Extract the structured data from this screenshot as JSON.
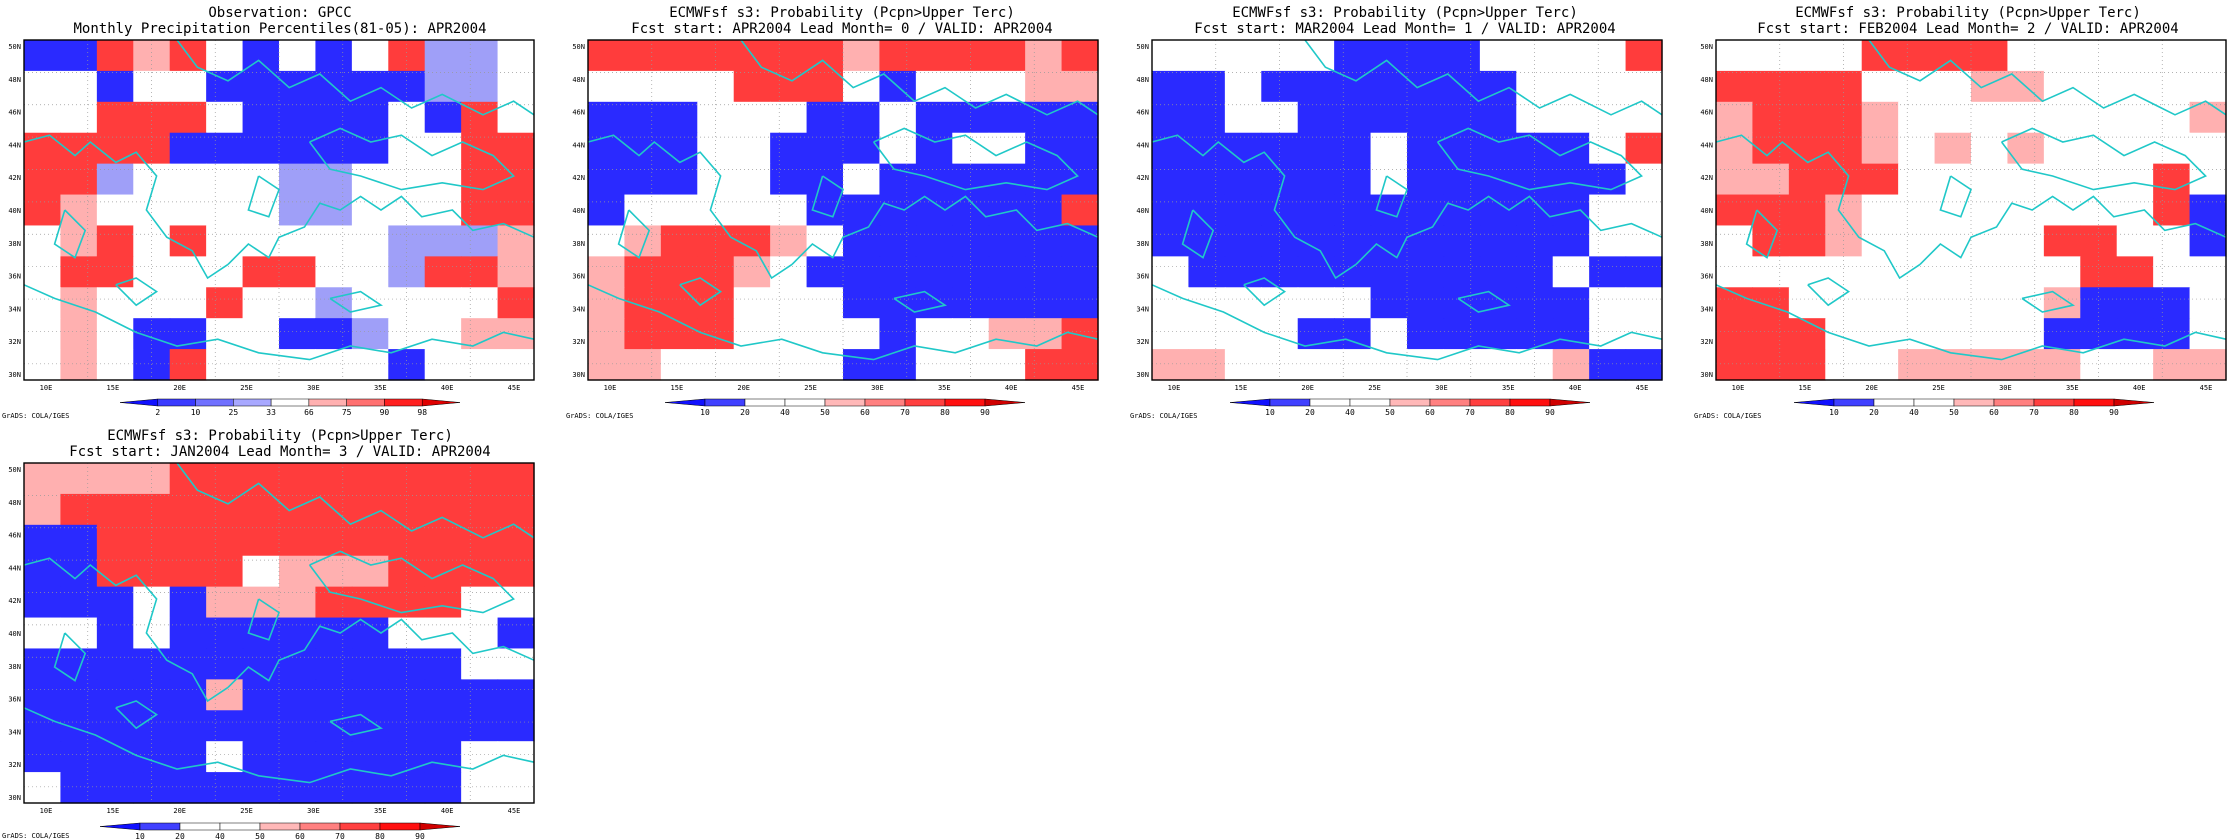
{
  "panels": [
    {
      "title1": "Observation: GPCC",
      "title2": "Monthly Precipitation Percentiles(81-05): APR2004",
      "colorbar": {
        "labels": [
          "2",
          "10",
          "25",
          "33",
          "66",
          "75",
          "90",
          "98"
        ],
        "colors": [
          "#1010ff",
          "#3a3aff",
          "#7070ff",
          "#a8a8ff",
          "#ffffff",
          "#ffb0b0",
          "#ff7070",
          "#ff2020",
          "#e00000"
        ]
      },
      "grid": [
        "BBRrR.B.B.Rbb.",
        "..B..BBBBBBbb.",
        "..RRR.BBBB.BR.",
        "RRRRBBBBBB..RR",
        "RRb....bb...RR",
        "Rr.....bb...RR",
        ".rR.R.....bbbr",
        ".RR...RR..bRRr",
        ".r...R..b....R",
        ".r.BB..BBb..rr",
        ".r.BR.....B..."
      ]
    },
    {
      "title1": "ECMWFsf s3: Probability (Pcpn>Upper Terc)",
      "title2": "Fcst start: APR2004   Lead Month= 0 / VALID: APR2004",
      "colorbar": {
        "labels": [
          "10",
          "20",
          "40",
          "50",
          "60",
          "70",
          "80",
          "90"
        ],
        "colors": [
          "#1010ff",
          "#4040ff",
          "#ffffff",
          "#ffffff",
          "#ffb8b8",
          "#ff8080",
          "#ff4040",
          "#ff1010",
          "#d00000"
        ]
      },
      "grid": [
        "RRRRRRRrRRRRrR",
        "....RRR.B...rr",
        "BBB...BB.BBBBB",
        "BBB..BBB.B..BB",
        "BBB..BB.BBBBBB",
        "B.....BBBBBBBR",
        ".rRRRr.BBBBBBB",
        "rRRRr.BBBBBBBB",
        "rRRR...BBBBBBB",
        "rRRR....B..rrR",
        "rr.....BB...RR"
      ]
    },
    {
      "title1": "ECMWFsf s3: Probability (Pcpn>Upper Terc)",
      "title2": "Fcst start: MAR2004   Lead Month= 1 / VALID: APR2004",
      "colorbar": {
        "labels": [
          "10",
          "20",
          "40",
          "50",
          "60",
          "70",
          "80",
          "90"
        ],
        "colors": [
          "#1010ff",
          "#4040ff",
          "#ffffff",
          "#ffffff",
          "#ffb8b8",
          "#ff8080",
          "#ff4040",
          "#ff1010",
          "#d00000"
        ]
      },
      "grid": [
        ".....BBBB....R",
        "BB.BBBBBBB....",
        "BB..BBBBBB....",
        "BBBBBB.BBBBB.R",
        "BBBBBB.BBBBBB.",
        "BBBBBBBBBBBB..",
        "BBBBBBBBBBBB..",
        ".BBBBBBBBBB.BB",
        "......BBBBBB..",
        "....BB.BBBBB..",
        "rr.........rBB"
      ]
    },
    {
      "title1": "ECMWFsf s3: Probability (Pcpn>Upper Terc)",
      "title2": "Fcst start: FEB2004   Lead Month= 2 / VALID: APR2004",
      "colorbar": {
        "labels": [
          "10",
          "20",
          "40",
          "50",
          "60",
          "70",
          "80",
          "90"
        ],
        "colors": [
          "#1010ff",
          "#4040ff",
          "#ffffff",
          "#ffffff",
          "#ffb8b8",
          "#ff8080",
          "#ff4040",
          "#ff1010",
          "#d00000"
        ]
      },
      "grid": [
        "....RRRR......",
        "RRRR...rr.....",
        "rRRRr........r",
        "rRRRr.r.r.....",
        "rrRRR.......R.",
        "RRRr........RB",
        ".RRr.....RR..B",
        "..........RR..",
        "RR.......rBBB.",
        "RRR......BBBB.",
        "RRR..rrrrr..rr"
      ]
    },
    {
      "title1": "ECMWFsf s3: Probability (Pcpn>Upper Terc)",
      "title2": "Fcst start: JAN2004   Lead Month= 3 / VALID: APR2004",
      "colorbar": {
        "labels": [
          "10",
          "20",
          "40",
          "50",
          "60",
          "70",
          "80",
          "90"
        ],
        "colors": [
          "#1010ff",
          "#4040ff",
          "#ffffff",
          "#ffffff",
          "#ffb8b8",
          "#ff8080",
          "#ff4040",
          "#ff1010",
          "#d00000"
        ]
      },
      "grid": [
        "rrrrRRRRRRRRRR",
        "rRRRRRRRRRRRRR",
        "BBRRRRRRRRRRRR",
        "BBRRRR.rrrRRRR",
        "BBB.BrrrRRRR..",
        "..B.BBBBBB...B",
        "BBBBBBBBBBBB..",
        "BBBBBrBBBBBBBB",
        "BBBBBBBBBBBBBB",
        "BBBBB.BBBBBB..",
        ".BBBBBBBBBBB.."
      ]
    }
  ],
  "legend_colors": {
    ".": "#ffffff",
    "b": "#9f9ff8",
    "B": "#2a2aff",
    "r": "#ffb0b0",
    "R": "#ff3c3c"
  },
  "axes": {
    "x_ticks": [
      "10E",
      "15E",
      "20E",
      "25E",
      "30E",
      "35E",
      "40E",
      "45E"
    ],
    "y_ticks": [
      "50N",
      "48N",
      "46N",
      "44N",
      "42N",
      "40N",
      "38N",
      "36N",
      "34N",
      "32N",
      "30N"
    ]
  },
  "credit": "GrADS: COLA/IGES"
}
